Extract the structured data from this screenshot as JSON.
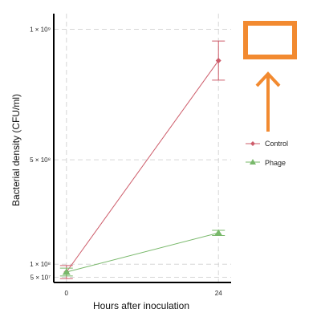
{
  "chart_data": {
    "type": "line",
    "xlabel": "Hours after inoculation",
    "ylabel": "Bacterial density (CFU/ml)",
    "x": [
      0,
      24
    ],
    "x_tick_labels": [
      "0",
      "24"
    ],
    "y_ticks": [
      {
        "value": 50000000,
        "label": "5 × 10⁷"
      },
      {
        "value": 100000000,
        "label": "1 × 10⁸"
      },
      {
        "value": 500000000,
        "label": "5 × 10⁸"
      },
      {
        "value": 1000000000,
        "label": "1 × 10⁹"
      }
    ],
    "xlim": [
      -2,
      26
    ],
    "ylim": [
      30000000,
      1060000000
    ],
    "grid": true,
    "legend_position": "right",
    "series": [
      {
        "name": "Control",
        "color": "#cd5c6a",
        "marker": "diamond",
        "values": [
          70000000,
          880000000
        ],
        "error": [
          25000000,
          75000000
        ]
      },
      {
        "name": "Phage",
        "color": "#78b86a",
        "marker": "triangle",
        "values": [
          70000000,
          220000000
        ],
        "error": [
          15000000,
          10000000
        ]
      }
    ]
  },
  "annotation": {
    "color": "#f28a30",
    "shapes": [
      "rectangle-outline",
      "arrow-up"
    ]
  }
}
